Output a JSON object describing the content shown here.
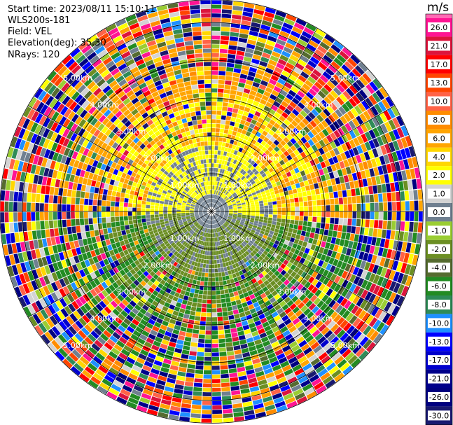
{
  "header": {
    "start_time": "Start time: 2023/08/11 15:10:11",
    "instrument": "WLS200s-181",
    "field": "Field: VEL",
    "elevation": "Elevation(deg): 35.30",
    "nrays": "NRays: 120"
  },
  "chart_data": {
    "type": "ppi",
    "field": "VEL",
    "units": "m/s",
    "n_rays": 120,
    "range_rings_km": [
      1.0,
      2.0,
      3.0,
      4.0,
      5.0
    ],
    "range_labels": [
      "1.00km",
      "2.00km",
      "3.00km",
      "4.00km",
      "5.00km"
    ],
    "max_range_km": 5.6,
    "colorbar": {
      "title": "m/s",
      "labels": [
        "26.0",
        "21.0",
        "17.0",
        "13.0",
        "10.0",
        "8.0",
        "6.0",
        "4.0",
        "2.0",
        "1.0",
        "0.0",
        "-1.0",
        "-2.0",
        "-4.0",
        "-6.0",
        "-8.0",
        "-10.0",
        "-13.0",
        "-17.0",
        "-21.0",
        "-26.0",
        "-30.0"
      ],
      "colors": [
        "#ff1493",
        "#dc143c",
        "#ff0000",
        "#ff4500",
        "#ff6347",
        "#ff8c00",
        "#ffa500",
        "#ffd700",
        "#ffff00",
        "#d3d3d3",
        "#708090",
        "#9acd32",
        "#6b8e23",
        "#556b2f",
        "#228b22",
        "#2e8b57",
        "#1e90ff",
        "#0000ff",
        "#0000cd",
        "#00008b",
        "#000080",
        "#191970"
      ],
      "top_color": "#ff69b4"
    },
    "inner_pattern_note": "",
    "sectors": [
      {
        "from_deg": 0,
        "to_deg": 95,
        "dominant": "2.0"
      },
      {
        "from_deg": 95,
        "to_deg": 265,
        "dominant": "-2.0"
      },
      {
        "from_deg": 265,
        "to_deg": 360,
        "dominant": "2.0"
      }
    ]
  }
}
